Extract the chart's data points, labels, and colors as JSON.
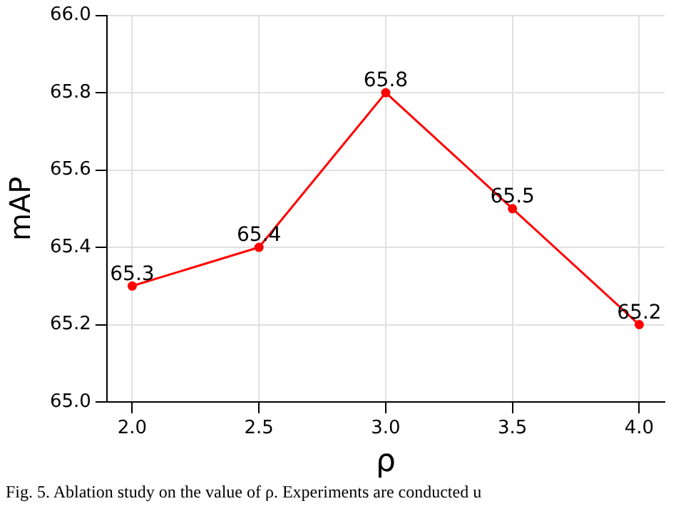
{
  "chart_data": {
    "type": "line",
    "xlabel": "ρ",
    "ylabel": "mAP",
    "x": [
      2.0,
      2.5,
      3.0,
      3.5,
      4.0
    ],
    "series": [
      {
        "color": "#ff0000",
        "values": [
          65.3,
          65.4,
          65.8,
          65.5,
          65.2
        ]
      }
    ],
    "xlim": [
      1.9,
      4.1
    ],
    "xticks": [
      {
        "value": 2,
        "label": "2.0"
      },
      {
        "value": 2.5,
        "label": "2.5"
      },
      {
        "value": 3,
        "label": "3.0"
      },
      {
        "value": 3.5,
        "label": "3.5"
      },
      {
        "value": 4,
        "label": "4.0"
      }
    ],
    "ylim": [
      65,
      66
    ],
    "yticks": [
      {
        "value": 65,
        "label": "65.0"
      },
      {
        "value": 65.2,
        "label": "65.2"
      },
      {
        "value": 65.4,
        "label": "65.4"
      },
      {
        "value": 65.6,
        "label": "65.6"
      },
      {
        "value": 65.8,
        "label": "65.8"
      },
      {
        "value": 66,
        "label": "66.0"
      }
    ],
    "grid": true,
    "marker": "circle",
    "line_style": "solid",
    "data_labels": true,
    "legend": false,
    "annotations": [
      "Fig. 5.  Ablation study on the value of ρ. Experiments are conducted u"
    ]
  }
}
